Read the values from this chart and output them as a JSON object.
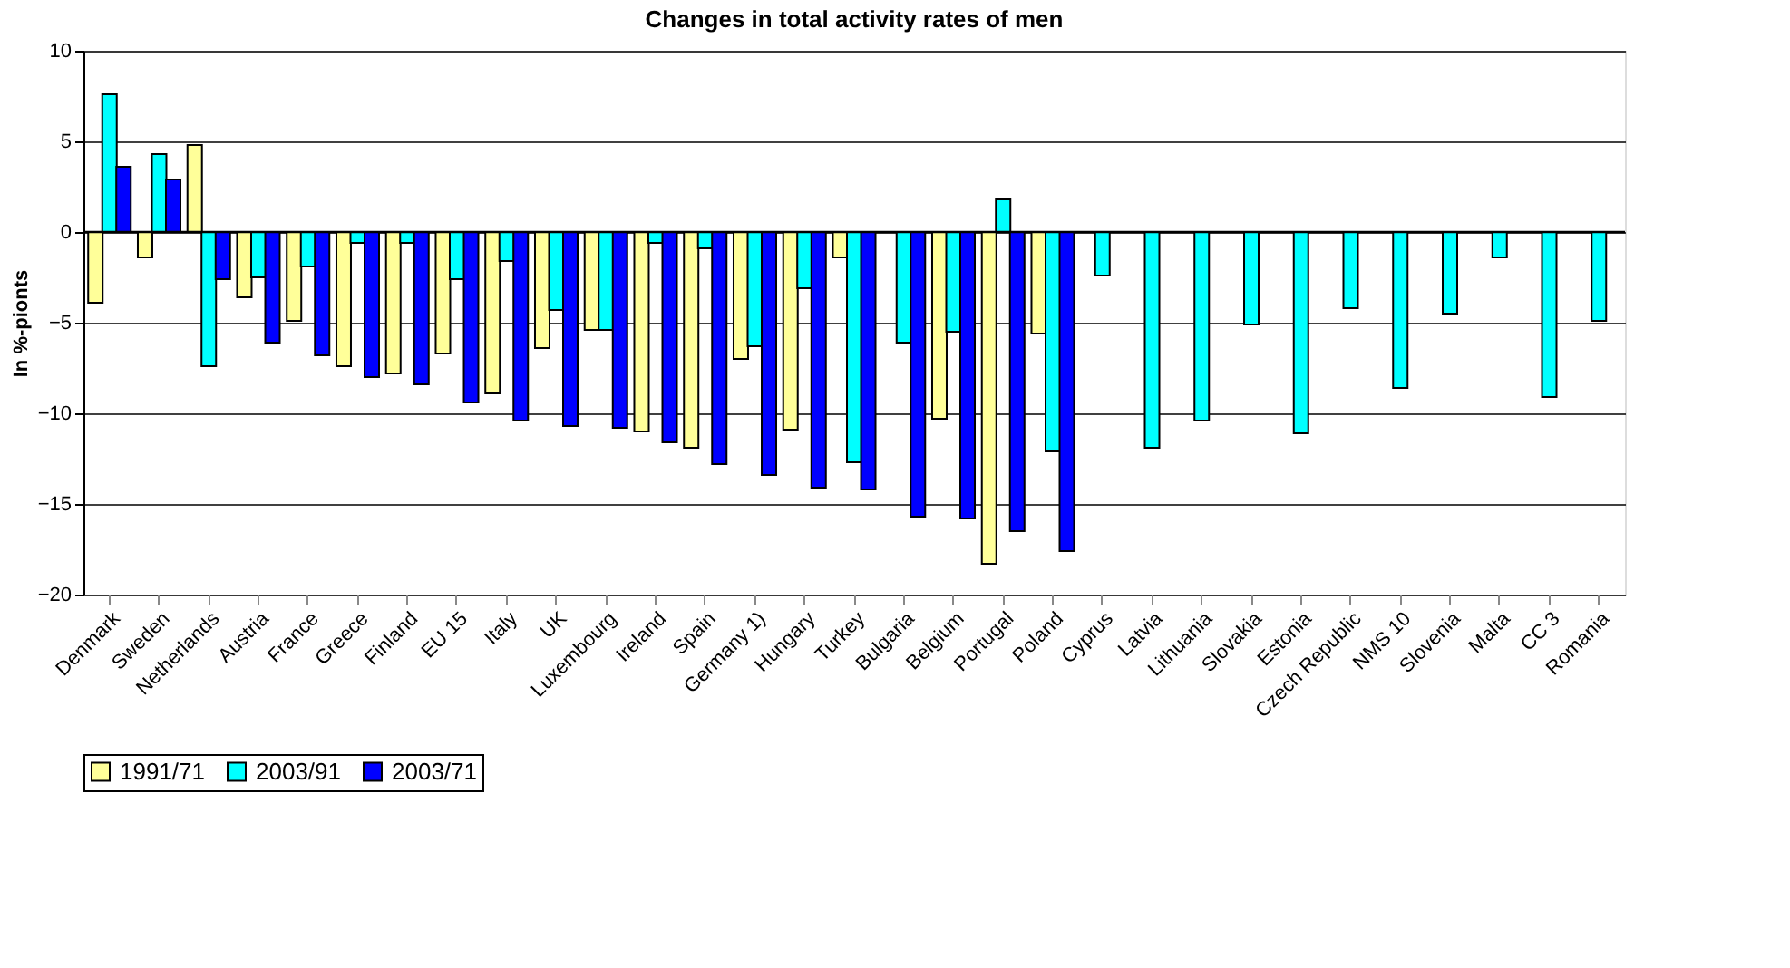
{
  "chart_data": {
    "type": "bar",
    "title": "Changes in total activity rates of men",
    "ylabel": "In %-pionts",
    "categories": [
      "Denmark",
      "Sweden",
      "Netherlands",
      "Austria",
      "France",
      "Greece",
      "Finland",
      "EU 15",
      "Italy",
      "UK",
      "Luxembourg",
      "Ireland",
      "Spain",
      "Germany 1)",
      "Hungary",
      "Turkey",
      "Bulgaria",
      "Belgium",
      "Portugal",
      "Poland",
      "Cyprus",
      "Latvia",
      "Lithuania",
      "Slovakia",
      "Estonia",
      "Czech Republic",
      "NMS 10",
      "Slovenia",
      "Malta",
      "CC 3",
      "Romania"
    ],
    "series": [
      {
        "name": "1991/71",
        "color": "#ffff99",
        "values": [
          -3.9,
          -1.4,
          4.8,
          -3.6,
          -4.9,
          -7.4,
          -7.8,
          -6.7,
          -8.9,
          -6.4,
          -5.4,
          -11.0,
          -11.9,
          -7.0,
          -10.9,
          -1.4,
          null,
          -10.3,
          -18.3,
          -5.6,
          null,
          null,
          null,
          null,
          null,
          null,
          null,
          null,
          null,
          null,
          null
        ]
      },
      {
        "name": "2003/91",
        "color": "#00ffff",
        "values": [
          7.6,
          4.3,
          -7.4,
          -2.5,
          -1.9,
          -0.6,
          -0.6,
          -2.6,
          -1.6,
          -4.3,
          -5.4,
          -0.6,
          -0.9,
          -6.3,
          -3.1,
          -12.7,
          -6.1,
          -5.5,
          1.8,
          -12.1,
          -2.4,
          -11.9,
          -10.4,
          -5.1,
          -11.1,
          -4.2,
          -8.6,
          -4.5,
          -1.4,
          -9.1,
          -4.9
        ]
      },
      {
        "name": "2003/71",
        "color": "#0000ff",
        "values": [
          3.6,
          2.9,
          -2.6,
          -6.1,
          -6.8,
          -8.0,
          -8.4,
          -9.4,
          -10.4,
          -10.7,
          -10.8,
          -11.6,
          -12.8,
          -13.4,
          -14.1,
          -14.2,
          -15.7,
          -15.8,
          -16.5,
          -17.6,
          null,
          null,
          null,
          null,
          null,
          null,
          null,
          null,
          null,
          null,
          null
        ]
      }
    ],
    "ylim": [
      -20,
      10
    ],
    "yticks": [
      -20,
      -15,
      -10,
      -5,
      0,
      5,
      10
    ],
    "grid": "y",
    "legend": "bottom"
  }
}
